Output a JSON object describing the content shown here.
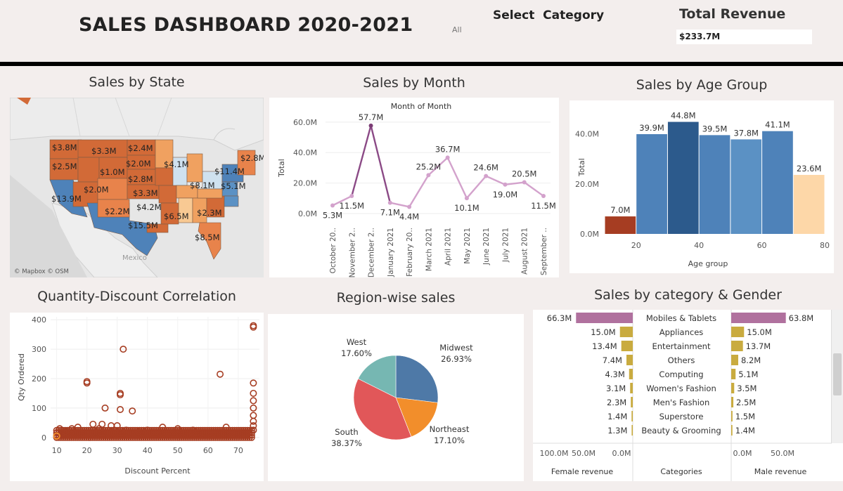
{
  "header": {
    "title": "SALES DASHBOARD 2020-2021",
    "select_label": "Select  Category",
    "select_value": "All",
    "revenue_label": "Total Revenue",
    "revenue_value": "$233.7M"
  },
  "titles": {
    "state": "Sales by State",
    "month": "Sales by Month",
    "age": "Sales by Age Group",
    "scatter": "Quantity-Discount Correlation",
    "region": "Region-wise sales",
    "category": "Sales by category & Gender"
  },
  "map": {
    "credit": "© Mapbox © OSM",
    "place_label": "Mexico",
    "labels": [
      "$3.8M",
      "$3.3M",
      "$2.4M",
      "$2.5M",
      "$2.0M",
      "$1.0M",
      "$4.1M",
      "$2.8M",
      "$2.8M",
      "$11.4M",
      "$2.0M",
      "$8.1M",
      "$5.1M",
      "$3.3M",
      "$13.9M",
      "$2.2M",
      "$4.2M",
      "$6.5M",
      "$2.3M",
      "$15.5M",
      "$8.5M"
    ]
  },
  "chart_data": [
    {
      "id": "month",
      "type": "line",
      "title": "Month of Month",
      "ylabel": "Total",
      "ylim": [
        0,
        65
      ],
      "yticks": [
        "0.0M",
        "20.0M",
        "40.0M",
        "60.0M"
      ],
      "categories": [
        "October 20..",
        "November 2..",
        "December 2..",
        "January 2021",
        "February 20..",
        "March 2021",
        "April 2021",
        "May 2021",
        "June 2021",
        "July 2021",
        "August 2021",
        "September .."
      ],
      "values": [
        5.3,
        11.5,
        57.7,
        7.1,
        4.4,
        25.2,
        36.7,
        10.1,
        24.6,
        19.0,
        20.5,
        11.5
      ],
      "labels": [
        "5.3M",
        "11.5M",
        "57.7M",
        "7.1M",
        "4.4M",
        "25.2M",
        "36.7M",
        "10.1M",
        "24.6M",
        "19.0M",
        "20.5M",
        "11.5M"
      ]
    },
    {
      "id": "age",
      "type": "bar",
      "xlabel": "Age group",
      "ylabel": "Total",
      "ylim": [
        0,
        50
      ],
      "xlim": [
        10,
        80
      ],
      "xticks": [
        "20",
        "40",
        "60",
        "80"
      ],
      "yticks": [
        "0.0M",
        "20.0M",
        "40.0M"
      ],
      "bins": [
        15,
        25,
        35,
        45,
        55,
        65,
        75
      ],
      "values": [
        7.0,
        39.9,
        44.8,
        39.5,
        37.8,
        41.1,
        23.6
      ],
      "labels": [
        "7.0M",
        "39.9M",
        "44.8M",
        "39.5M",
        "37.8M",
        "41.1M",
        "23.6M"
      ],
      "colors": [
        "#a63d22",
        "#4e82b9",
        "#2c5a8c",
        "#4e82b9",
        "#5b91c4",
        "#4e82b9",
        "#fdd7a8"
      ]
    },
    {
      "id": "scatter",
      "type": "scatter",
      "xlabel": "Discount Percent",
      "ylabel": "Qty Ordered",
      "xlim": [
        8,
        77
      ],
      "ylim": [
        -10,
        410
      ],
      "xticks": [
        "10",
        "20",
        "30",
        "40",
        "50",
        "60",
        "70"
      ],
      "yticks": [
        "0",
        "100",
        "200",
        "300",
        "400"
      ],
      "outliers": [
        [
          10,
          5
        ],
        [
          11,
          30
        ],
        [
          13,
          20
        ],
        [
          15,
          30
        ],
        [
          17,
          35
        ],
        [
          20,
          190
        ],
        [
          20,
          185
        ],
        [
          22,
          45
        ],
        [
          24,
          30
        ],
        [
          25,
          45
        ],
        [
          26,
          100
        ],
        [
          28,
          40
        ],
        [
          30,
          40
        ],
        [
          31,
          145
        ],
        [
          31,
          150
        ],
        [
          32,
          300
        ],
        [
          33,
          25
        ],
        [
          35,
          90
        ],
        [
          31,
          95
        ],
        [
          37,
          20
        ],
        [
          40,
          25
        ],
        [
          45,
          35
        ],
        [
          50,
          30
        ],
        [
          55,
          25
        ],
        [
          64,
          215
        ],
        [
          66,
          35
        ],
        [
          75,
          380
        ],
        [
          75,
          375
        ],
        [
          75,
          185
        ],
        [
          75,
          150
        ],
        [
          75,
          125
        ],
        [
          75,
          100
        ],
        [
          75,
          75
        ],
        [
          75,
          55
        ],
        [
          75,
          40
        ],
        [
          75,
          25
        ]
      ]
    },
    {
      "id": "region",
      "type": "pie",
      "categories": [
        "Midwest",
        "Northeast",
        "South",
        "West"
      ],
      "values": [
        26.93,
        17.1,
        38.37,
        17.6
      ],
      "labels": [
        "26.93%",
        "17.10%",
        "38.37%",
        "17.60%"
      ],
      "colors": [
        "#4e79a7",
        "#f28e2b",
        "#e15759",
        "#76b7b2"
      ]
    },
    {
      "id": "category",
      "type": "bar",
      "orientation": "horizontal",
      "categories": [
        "Mobiles & Tablets",
        "Appliances",
        "Entertainment",
        "Others",
        "Computing",
        "Women's Fashion",
        "Men's Fashion",
        "Superstore",
        "Beauty & Grooming"
      ],
      "female": [
        66.3,
        15.0,
        13.4,
        7.4,
        4.3,
        3.1,
        2.3,
        1.4,
        1.3
      ],
      "female_labels": [
        "66.3M",
        "15.0M",
        "13.4M",
        "7.4M",
        "4.3M",
        "3.1M",
        "2.3M",
        "1.4M",
        "1.3M"
      ],
      "male": [
        63.8,
        15.0,
        13.7,
        8.2,
        5.1,
        3.5,
        2.5,
        1.5,
        1.4
      ],
      "male_labels": [
        "63.8M",
        "15.0M",
        "13.7M",
        "8.2M",
        "5.1M",
        "3.5M",
        "2.5M",
        "1.5M",
        "1.4M"
      ],
      "female_axis_ticks": [
        "100.0M",
        "50.0M",
        "0.0M"
      ],
      "male_axis_ticks": [
        "0.0M",
        "50.0M"
      ],
      "female_axis_label": "Female revenue",
      "center_axis_label": "Categories",
      "male_axis_label": "Male revenue",
      "colors": {
        "top": "#b0719e",
        "other": "#c9ab3f"
      }
    }
  ]
}
